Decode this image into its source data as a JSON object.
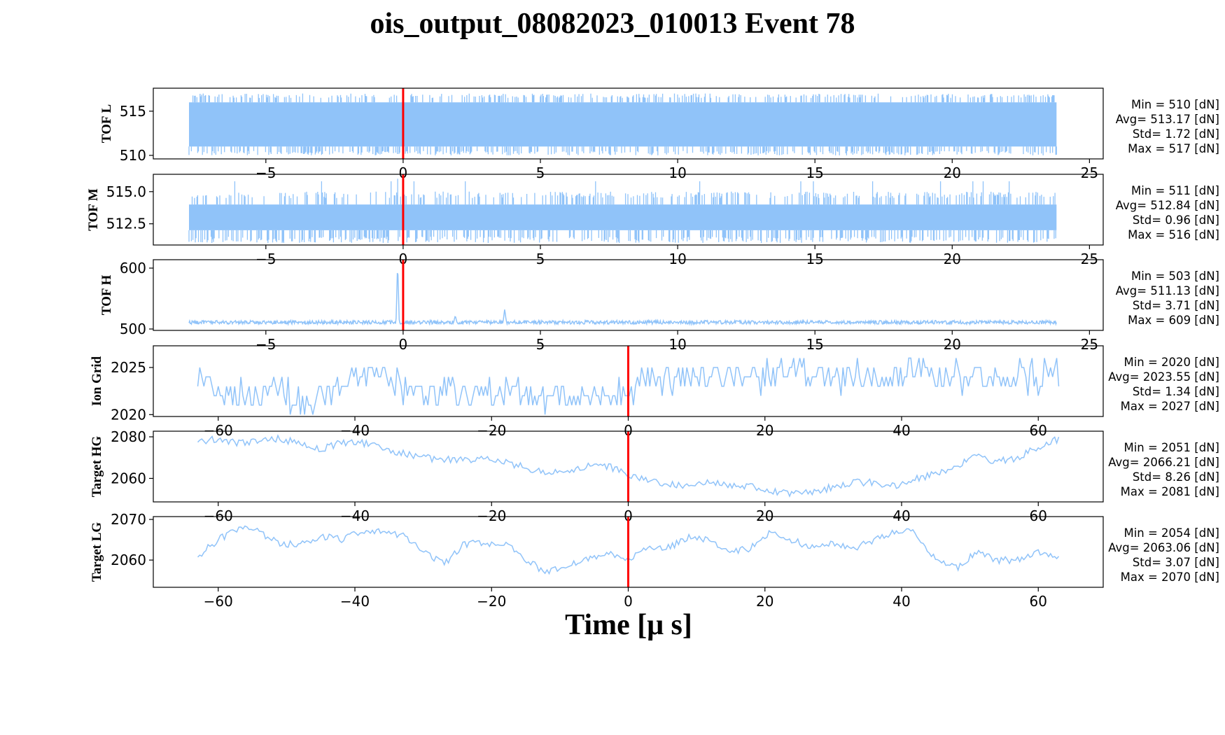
{
  "colors": {
    "signal": "#90c3f9",
    "marker": "#ff0000",
    "axes": "#000000"
  },
  "chart_data": [
    {
      "type": "line",
      "name": "TOF L",
      "title": "ois_output_08082023_010013 Event 78",
      "ylabel": "TOF L",
      "xlim": [
        -9.1,
        25.5
      ],
      "ylim": [
        509.6,
        517.6
      ],
      "xticks": [
        -5,
        0,
        5,
        10,
        15,
        20,
        25
      ],
      "yticks": [
        510,
        515
      ],
      "x_range": [
        -7.8,
        23.8
      ],
      "band": [
        511,
        516
      ],
      "noise": "binary",
      "spikes": [],
      "marker_x": 0,
      "stats": [
        "Min = 510 [dN]",
        "Avg= 513.17 [dN]",
        "Std= 1.72 [dN]",
        "Max = 517 [dN]"
      ]
    },
    {
      "type": "line",
      "name": "TOF M",
      "ylabel": "TOF M",
      "xlim": [
        -9.1,
        25.5
      ],
      "ylim": [
        510.85,
        516.35
      ],
      "xticks": [
        -5,
        0,
        5,
        10,
        15,
        20,
        25
      ],
      "yticks": [
        512.5,
        515.0
      ],
      "x_range": [
        -7.8,
        23.8
      ],
      "band": [
        512,
        514
      ],
      "noise": "binary",
      "spikes": [
        [
          -0.2,
          516
        ]
      ],
      "marker_x": 0,
      "stats": [
        "Min = 511 [dN]",
        "Avg= 512.84 [dN]",
        "Std= 0.96 [dN]",
        "Max = 516 [dN]"
      ]
    },
    {
      "type": "line",
      "name": "TOF H",
      "ylabel": "TOF H",
      "xlim": [
        -9.1,
        25.5
      ],
      "ylim": [
        497.7,
        613.8
      ],
      "xticks": [
        -5,
        0,
        5,
        10,
        15,
        20,
        25
      ],
      "yticks": [
        500,
        600
      ],
      "x_range": [
        -7.8,
        23.8
      ],
      "band": [
        508,
        514
      ],
      "noise": "dense",
      "spikes": [
        [
          -0.2,
          609
        ],
        [
          1.9,
          522
        ],
        [
          3.7,
          533
        ]
      ],
      "marker_x": 0,
      "stats": [
        "Min = 503 [dN]",
        "Avg= 511.13 [dN]",
        "Std= 3.71 [dN]",
        "Max = 609 [dN]"
      ]
    },
    {
      "type": "line",
      "name": "Ion Grid",
      "ylabel": "Ion Grid",
      "xlim": [
        -69.5,
        69.5
      ],
      "ylim": [
        2019.8,
        2027.3
      ],
      "xticks": [
        -60,
        -40,
        -20,
        0,
        20,
        40,
        60
      ],
      "yticks": [
        2020,
        2025
      ],
      "marker_x": 0,
      "style": "steps",
      "x": [
        -63,
        -60,
        -57,
        -54,
        -51,
        -48,
        -45,
        -42,
        -39,
        -36,
        -33,
        -30,
        -27,
        -24,
        -21,
        -18,
        -15,
        -12,
        -9,
        -6,
        -3,
        0,
        3,
        6,
        9,
        12,
        15,
        18,
        21,
        24,
        27,
        30,
        33,
        36,
        39,
        42,
        45,
        48,
        51,
        54,
        57,
        60,
        63
      ],
      "y": [
        2024,
        2023,
        2022,
        2022,
        2023,
        2021,
        2022,
        2023,
        2024,
        2024,
        2023,
        2022,
        2023,
        2022,
        2022,
        2023,
        2022,
        2021,
        2022,
        2022,
        2022,
        2022,
        2024,
        2024,
        2024,
        2024,
        2024,
        2024,
        2024,
        2025,
        2024,
        2024,
        2024,
        2024,
        2024,
        2025,
        2024,
        2024,
        2024,
        2024,
        2024,
        2024,
        2024
      ],
      "stats": [
        "Min = 2020 [dN]",
        "Avg= 2023.55 [dN]",
        "Std= 1.34 [dN]",
        "Max = 2027 [dN]"
      ]
    },
    {
      "type": "line",
      "name": "Target HG",
      "ylabel": "Target HG",
      "xlim": [
        -69.5,
        69.5
      ],
      "ylim": [
        2048.7,
        2082.7
      ],
      "xticks": [
        -60,
        -40,
        -20,
        0,
        20,
        40,
        60
      ],
      "yticks": [
        2060,
        2080
      ],
      "marker_x": 0,
      "style": "smooth",
      "x": [
        -63,
        -60,
        -57,
        -54,
        -51,
        -48,
        -45,
        -42,
        -39,
        -36,
        -33,
        -30,
        -27,
        -24,
        -21,
        -18,
        -15,
        -12,
        -9,
        -6,
        -3,
        0,
        3,
        6,
        9,
        12,
        15,
        18,
        21,
        24,
        27,
        30,
        33,
        36,
        39,
        42,
        45,
        48,
        51,
        54,
        57,
        60,
        63
      ],
      "y": [
        2078,
        2079,
        2077,
        2078,
        2079,
        2077,
        2074,
        2077,
        2077,
        2075,
        2072,
        2070,
        2069,
        2069,
        2069,
        2068,
        2065,
        2063,
        2063,
        2066,
        2066,
        2062,
        2059,
        2057,
        2056,
        2058,
        2057,
        2056,
        2054,
        2053,
        2053,
        2056,
        2058,
        2058,
        2056,
        2060,
        2062,
        2066,
        2071,
        2068,
        2070,
        2075,
        2079
      ],
      "stats": [
        "Min = 2051 [dN]",
        "Avg= 2066.21 [dN]",
        "Std= 8.26 [dN]",
        "Max = 2081 [dN]"
      ]
    },
    {
      "type": "line",
      "name": "Target LG",
      "ylabel": "Target LG",
      "xlim": [
        -69.5,
        69.5
      ],
      "ylim": [
        2053.3,
        2070.7
      ],
      "xticks": [
        -60,
        -40,
        -20,
        0,
        20,
        40,
        60
      ],
      "yticks": [
        2060,
        2070
      ],
      "marker_x": 0,
      "style": "smooth",
      "x": [
        -63,
        -60,
        -57,
        -54,
        -51,
        -48,
        -45,
        -42,
        -39,
        -36,
        -33,
        -30,
        -27,
        -24,
        -21,
        -18,
        -15,
        -12,
        -9,
        -6,
        -3,
        0,
        3,
        6,
        9,
        12,
        15,
        18,
        21,
        24,
        27,
        30,
        33,
        36,
        39,
        42,
        45,
        48,
        51,
        54,
        57,
        60,
        63
      ],
      "y": [
        2061,
        2065,
        2068,
        2067,
        2064,
        2064,
        2066,
        2065,
        2067,
        2067,
        2066,
        2062,
        2059,
        2064,
        2064,
        2064,
        2060,
        2057,
        2059,
        2060,
        2062,
        2060,
        2063,
        2063,
        2066,
        2065,
        2062,
        2063,
        2067,
        2065,
        2063,
        2064,
        2063,
        2065,
        2067,
        2067,
        2060,
        2058,
        2062,
        2060,
        2060,
        2062,
        2061
      ],
      "stats": [
        "Min = 2054 [dN]",
        "Avg= 2063.06 [dN]",
        "Std= 3.07 [dN]",
        "Max = 2070 [dN]"
      ]
    }
  ],
  "figure": {
    "title": "ois_output_08082023_010013 Event 78",
    "xlabel": "Time [μ s]"
  }
}
